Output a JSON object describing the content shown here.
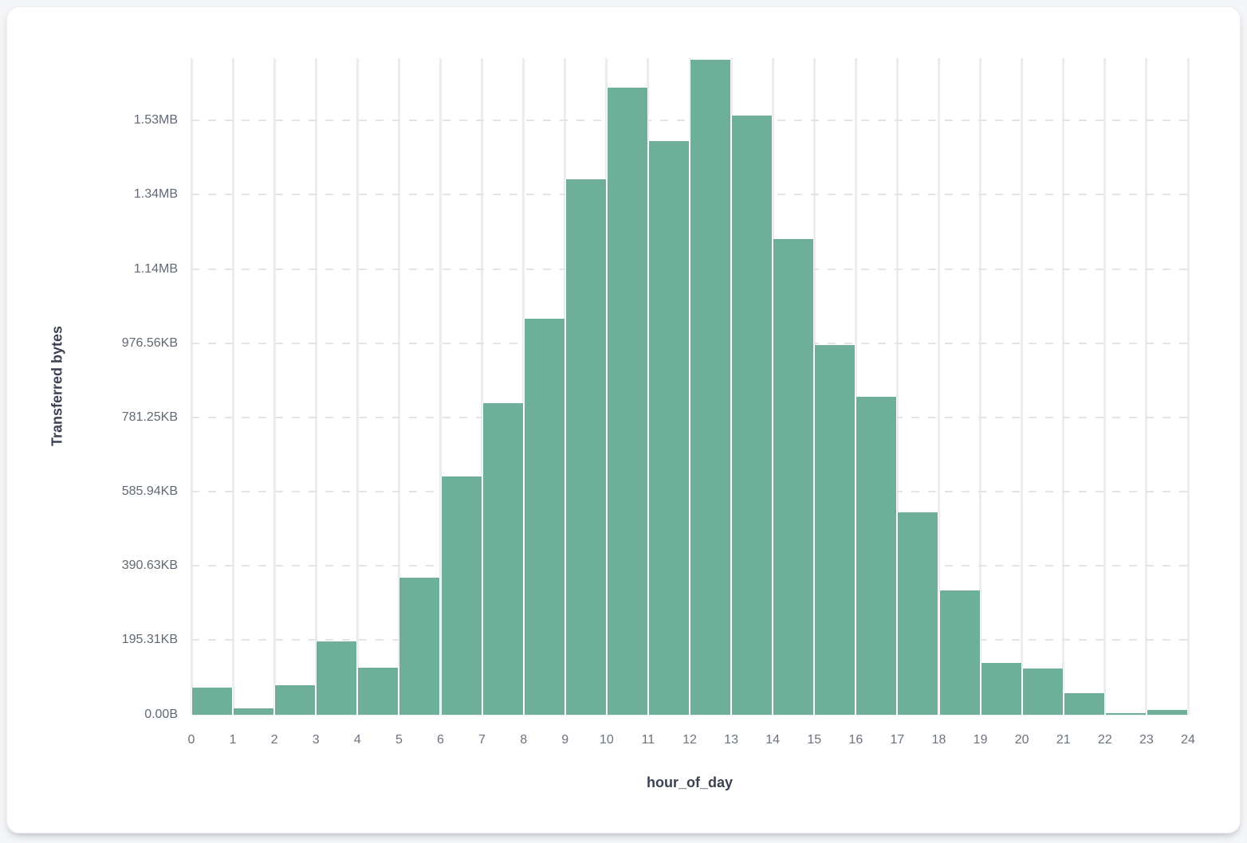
{
  "chart_data": {
    "type": "bar",
    "subtype": "histogram",
    "xlabel": "hour_of_day",
    "ylabel": "Transferred bytes",
    "bin_width_hours": 1,
    "x_range": [
      0,
      24
    ],
    "categories": [
      0,
      1,
      2,
      3,
      4,
      5,
      6,
      7,
      8,
      9,
      10,
      11,
      12,
      13,
      14,
      15,
      16,
      17,
      18,
      19,
      20,
      21,
      22,
      23
    ],
    "values_bytes": [
      73000,
      17000,
      79000,
      197000,
      126000,
      368000,
      640000,
      838000,
      1067000,
      1441000,
      1688000,
      1545000,
      1764000,
      1613000,
      1281000,
      996000,
      855000,
      544000,
      334000,
      139000,
      124000,
      58000,
      4000,
      12000
    ],
    "x_ticks": [
      "0",
      "1",
      "2",
      "3",
      "4",
      "5",
      "6",
      "7",
      "8",
      "9",
      "10",
      "11",
      "12",
      "13",
      "14",
      "15",
      "16",
      "17",
      "18",
      "19",
      "20",
      "21",
      "22",
      "23",
      "24"
    ],
    "y_ticks": [
      {
        "value": 0,
        "label": "0.00B"
      },
      {
        "value": 200000,
        "label": "195.31KB"
      },
      {
        "value": 400000,
        "label": "390.63KB"
      },
      {
        "value": 600000,
        "label": "585.94KB"
      },
      {
        "value": 800000,
        "label": "781.25KB"
      },
      {
        "value": 1000000,
        "label": "976.56KB"
      },
      {
        "value": 1200000,
        "label": "1.14MB"
      },
      {
        "value": 1400000,
        "label": "1.34MB"
      },
      {
        "value": 1600000,
        "label": "1.53MB"
      }
    ],
    "y_axis_max": 1768000,
    "grid": {
      "horizontal": "dashed",
      "vertical": "solid"
    },
    "legend": "none",
    "colors": {
      "bar_fill": "#6DAF98",
      "vertical_grid": "#EAECF0",
      "horizontal_grid": "#E1E4E8",
      "tick_text": "#646C79",
      "axis_title_text": "#3A4150",
      "card_background": "#FFFFFF",
      "page_background": "#F4F5F7"
    }
  }
}
